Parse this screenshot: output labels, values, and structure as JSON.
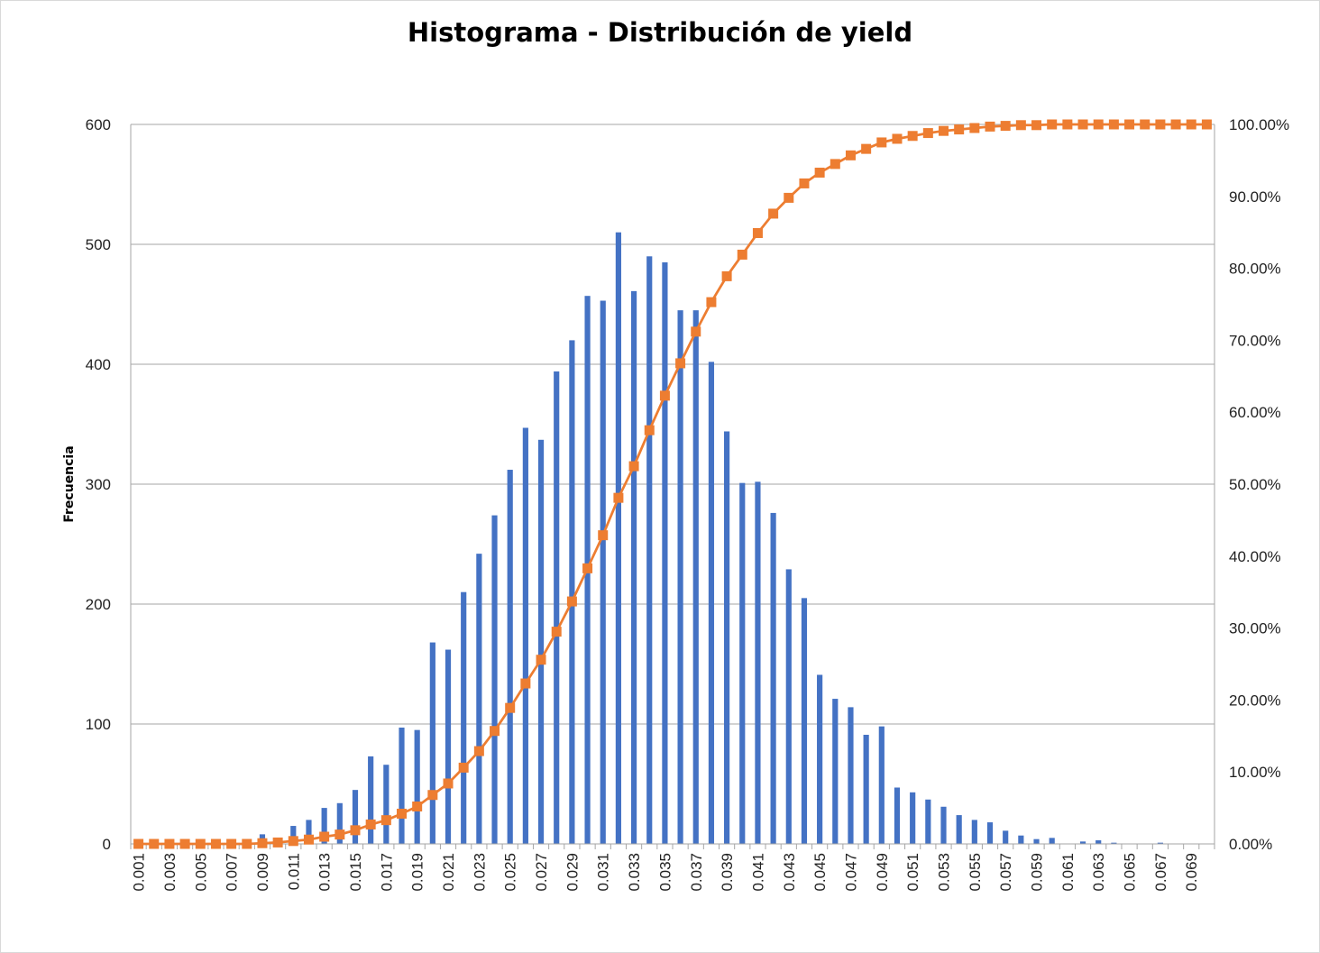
{
  "chart_data": {
    "type": "bar",
    "title": "Histograma - Distribución de yield",
    "xlabel": "",
    "ylabel": "Frecuencia",
    "y2label": "",
    "ylim": [
      0,
      600
    ],
    "y2lim": [
      0,
      100
    ],
    "yticks": [
      "0",
      "100",
      "200",
      "300",
      "400",
      "500",
      "600"
    ],
    "y2ticks": [
      "0.00%",
      "10.00%",
      "20.00%",
      "30.00%",
      "40.00%",
      "50.00%",
      "60.00%",
      "70.00%",
      "80.00%",
      "90.00%",
      "100.00%"
    ],
    "x_tick_labels": [
      "0.001",
      "0.003",
      "0.005",
      "0.007",
      "0.009",
      "0.011",
      "0.013",
      "0.015",
      "0.017",
      "0.019",
      "0.021",
      "0.023",
      "0.025",
      "0.027",
      "0.029",
      "0.031",
      "0.033",
      "0.035",
      "0.037",
      "0.039",
      "0.041",
      "0.043",
      "0.045",
      "0.047",
      "0.049",
      "0.051",
      "0.053",
      "0.055",
      "0.057",
      "0.059",
      "0.061",
      "0.063",
      "0.065",
      "0.067",
      "0.069"
    ],
    "categories": [
      "0.001",
      "0.002",
      "0.003",
      "0.004",
      "0.005",
      "0.006",
      "0.007",
      "0.008",
      "0.009",
      "0.010",
      "0.011",
      "0.012",
      "0.013",
      "0.014",
      "0.015",
      "0.016",
      "0.017",
      "0.018",
      "0.019",
      "0.020",
      "0.021",
      "0.022",
      "0.023",
      "0.024",
      "0.025",
      "0.026",
      "0.027",
      "0.028",
      "0.029",
      "0.030",
      "0.031",
      "0.032",
      "0.033",
      "0.034",
      "0.035",
      "0.036",
      "0.037",
      "0.038",
      "0.039",
      "0.040",
      "0.041",
      "0.042",
      "0.043",
      "0.044",
      "0.045",
      "0.046",
      "0.047",
      "0.048",
      "0.049",
      "0.050",
      "0.051",
      "0.052",
      "0.053",
      "0.054",
      "0.055",
      "0.056",
      "0.057",
      "0.058",
      "0.059",
      "0.060",
      "0.061",
      "0.062",
      "0.063",
      "0.064",
      "0.065",
      "0.066",
      "0.067",
      "0.068",
      "0.069",
      "0.070"
    ],
    "series": [
      {
        "type": "bar",
        "axis": "left",
        "color": "#4472C4",
        "values": [
          0,
          0,
          0,
          0,
          0,
          0,
          0,
          0,
          8,
          5,
          15,
          20,
          30,
          34,
          45,
          73,
          66,
          97,
          95,
          168,
          162,
          210,
          242,
          274,
          312,
          347,
          337,
          394,
          420,
          457,
          453,
          510,
          461,
          490,
          485,
          445,
          445,
          402,
          344,
          301,
          302,
          276,
          229,
          205,
          141,
          121,
          114,
          91,
          98,
          47,
          43,
          37,
          31,
          24,
          20,
          18,
          11,
          7,
          4,
          5,
          0,
          2,
          3,
          1,
          0,
          0,
          1,
          0,
          0,
          0
        ]
      },
      {
        "type": "line",
        "axis": "right",
        "color": "#ED7D31",
        "marker": "square",
        "values": [
          0.0,
          0.0,
          0.0,
          0.0,
          0.0,
          0.0,
          0.0,
          0.0,
          0.1,
          0.2,
          0.4,
          0.6,
          1.0,
          1.3,
          1.9,
          2.7,
          3.3,
          4.2,
          5.2,
          6.8,
          8.4,
          10.6,
          12.9,
          15.7,
          18.9,
          22.3,
          25.6,
          29.5,
          33.7,
          38.3,
          42.9,
          48.1,
          52.5,
          57.5,
          62.3,
          66.8,
          71.2,
          75.3,
          78.9,
          81.9,
          84.9,
          87.6,
          89.8,
          91.8,
          93.3,
          94.5,
          95.7,
          96.6,
          97.5,
          98.0,
          98.4,
          98.8,
          99.1,
          99.3,
          99.5,
          99.7,
          99.8,
          99.9,
          99.9,
          100.0,
          100.0,
          100.0,
          100.0,
          100.0,
          100.0,
          100.0,
          100.0,
          100.0,
          100.0,
          100.0
        ]
      }
    ],
    "grid": true,
    "legend": "none"
  }
}
